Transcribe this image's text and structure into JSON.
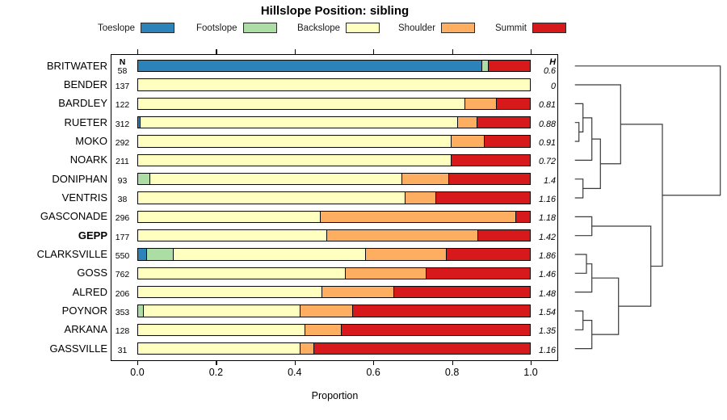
{
  "title": "Hillslope Position: sibling",
  "columns": {
    "n_header": "N",
    "h_header": "H"
  },
  "x_axis": {
    "label": "Proportion",
    "ticks": [
      "0.0",
      "0.2",
      "0.4",
      "0.6",
      "0.8",
      "1.0"
    ]
  },
  "legend": {
    "items": [
      {
        "label": "Toeslope",
        "color": "#2B83BA"
      },
      {
        "label": "Footslope",
        "color": "#ABDDA4"
      },
      {
        "label": "Backslope",
        "color": "#FFFFBF"
      },
      {
        "label": "Shoulder",
        "color": "#FDAE61"
      },
      {
        "label": "Summit",
        "color": "#D7191C"
      }
    ]
  },
  "chart_data": {
    "type": "bar",
    "stacked": true,
    "orientation": "horizontal",
    "title": "Hillslope Position: sibling",
    "xlabel": "Proportion",
    "xlim": [
      0,
      1
    ],
    "categories": [
      "Toeslope",
      "Footslope",
      "Backslope",
      "Shoulder",
      "Summit"
    ],
    "colors": [
      "#2B83BA",
      "#ABDDA4",
      "#FFFFBF",
      "#FDAE61",
      "#D7191C"
    ],
    "rows": [
      {
        "name": "BRITWATER",
        "n": 58,
        "h": "0.6",
        "bold": false,
        "values": [
          0.878,
          0.017,
          0,
          0,
          0.105
        ]
      },
      {
        "name": "BENDER",
        "n": 137,
        "h": "0",
        "bold": false,
        "values": [
          0,
          0,
          1.0,
          0,
          0
        ]
      },
      {
        "name": "BARDLEY",
        "n": 122,
        "h": "0.81",
        "bold": false,
        "values": [
          0,
          0,
          0.835,
          0.079,
          0.086
        ]
      },
      {
        "name": "RUETER",
        "n": 312,
        "h": "0.88",
        "bold": false,
        "values": [
          0.01,
          0,
          0.807,
          0.048,
          0.135
        ]
      },
      {
        "name": "MOKO",
        "n": 292,
        "h": "0.91",
        "bold": false,
        "values": [
          0,
          0,
          0.8,
          0.083,
          0.117
        ]
      },
      {
        "name": "NOARK",
        "n": 211,
        "h": "0.72",
        "bold": false,
        "values": [
          0,
          0,
          0.8,
          0,
          0.2
        ]
      },
      {
        "name": "DONIPHAN",
        "n": 93,
        "h": "1.4",
        "bold": false,
        "values": [
          0,
          0.033,
          0.642,
          0.118,
          0.207
        ]
      },
      {
        "name": "VENTRIS",
        "n": 38,
        "h": "1.16",
        "bold": false,
        "values": [
          0,
          0,
          0.682,
          0.078,
          0.24
        ]
      },
      {
        "name": "GASCONADE",
        "n": 296,
        "h": "1.18",
        "bold": false,
        "values": [
          0,
          0,
          0.468,
          0.497,
          0.035
        ]
      },
      {
        "name": "GEPP",
        "n": 177,
        "h": "1.42",
        "bold": true,
        "values": [
          0,
          0,
          0.483,
          0.385,
          0.132
        ]
      },
      {
        "name": "CLARKSVILLE",
        "n": 550,
        "h": "1.86",
        "bold": false,
        "values": [
          0.026,
          0.068,
          0.488,
          0.205,
          0.213
        ]
      },
      {
        "name": "GOSS",
        "n": 762,
        "h": "1.46",
        "bold": false,
        "values": [
          0,
          0,
          0.53,
          0.206,
          0.264
        ]
      },
      {
        "name": "ALRED",
        "n": 206,
        "h": "1.48",
        "bold": false,
        "values": [
          0,
          0,
          0.472,
          0.182,
          0.346
        ]
      },
      {
        "name": "POYNOR",
        "n": 353,
        "h": "1.54",
        "bold": false,
        "values": [
          0,
          0.017,
          0.398,
          0.135,
          0.45
        ]
      },
      {
        "name": "ARKANA",
        "n": 128,
        "h": "1.35",
        "bold": false,
        "values": [
          0,
          0,
          0.428,
          0.092,
          0.48
        ]
      },
      {
        "name": "GASSVILLE",
        "n": 31,
        "h": "1.16",
        "bold": false,
        "values": [
          0,
          0,
          0.416,
          0.034,
          0.55
        ]
      }
    ],
    "dendrogram": {
      "legend_position": "right",
      "merges": [
        {
          "id": "M1",
          "a": "RUETER",
          "b": "MOKO",
          "x": 716.7
        },
        {
          "id": "M2",
          "a": "BARDLEY",
          "b": "M1",
          "x": 721.7
        },
        {
          "id": "M3",
          "a": "M2",
          "b": "NOARK",
          "x": 732.7
        },
        {
          "id": "M4",
          "a": "DONIPHAN",
          "b": "VENTRIS",
          "x": 721.7
        },
        {
          "id": "M5",
          "a": "M3",
          "b": "M4",
          "x": 743.3
        },
        {
          "id": "M6",
          "a": "BENDER",
          "b": "M5",
          "x": 768.3
        },
        {
          "id": "M7",
          "a": "GASCONADE",
          "b": "GEPP",
          "x": 732.7
        },
        {
          "id": "M8",
          "a": "CLARKSVILLE",
          "b": "GOSS",
          "x": 726.0
        },
        {
          "id": "M9",
          "a": "M8",
          "b": "ALRED",
          "x": 732.7
        },
        {
          "id": "M10",
          "a": "POYNOR",
          "b": "ARKANA",
          "x": 721.7
        },
        {
          "id": "M11",
          "a": "M10",
          "b": "GASSVILLE",
          "x": 732.7
        },
        {
          "id": "M12",
          "a": "M9",
          "b": "M11",
          "x": 765.7
        },
        {
          "id": "M13",
          "a": "M7",
          "b": "M12",
          "x": 805.7
        },
        {
          "id": "M14",
          "a": "M6",
          "b": "M13",
          "x": 820.0
        },
        {
          "id": "M15",
          "a": "BRITWATER",
          "b": "M14",
          "x": 891.7
        }
      ]
    }
  }
}
